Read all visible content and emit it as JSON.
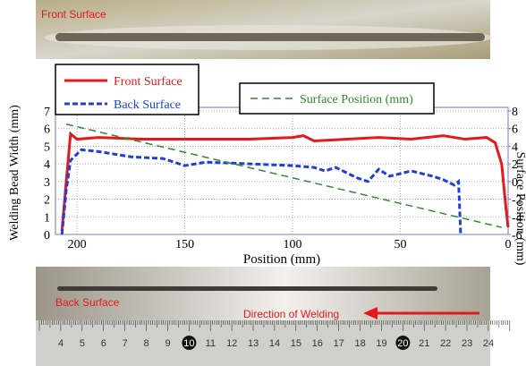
{
  "chart_data": {
    "type": "line",
    "x_label": "Position (mm)",
    "y_label": "Welding Bead Width (mm)",
    "y2_label": "Surface Position (mm)",
    "xlim": [
      210,
      0
    ],
    "xticks": [
      200,
      150,
      100,
      50,
      0
    ],
    "ylim": [
      0,
      7
    ],
    "yticks": [
      0,
      1,
      2,
      3,
      4,
      5,
      6,
      7
    ],
    "y2lim": [
      -6,
      8
    ],
    "y2ticks": [
      -6,
      -4,
      -2,
      0,
      2,
      4,
      6,
      8
    ],
    "grid": true,
    "series": [
      {
        "name": "Front Surface",
        "color": "#e31a1c",
        "style": "solid",
        "x": [
          207,
          205,
          203,
          200,
          190,
          170,
          150,
          120,
          100,
          95,
          90,
          75,
          60,
          45,
          30,
          20,
          10,
          6,
          3,
          1,
          0
        ],
        "values": [
          0.2,
          3,
          5.7,
          5.4,
          5.5,
          5.4,
          5.4,
          5.4,
          5.5,
          5.6,
          5.3,
          5.4,
          5.5,
          5.4,
          5.6,
          5.4,
          5.5,
          5.2,
          4,
          1.5,
          0.4
        ]
      },
      {
        "name": "Back Surface",
        "color": "#1f3fd6",
        "style": "dashed",
        "x": [
          207,
          205,
          203,
          198,
          190,
          175,
          160,
          150,
          140,
          120,
          100,
          90,
          85,
          80,
          70,
          65,
          60,
          55,
          45,
          35,
          30,
          25,
          23,
          22
        ],
        "values": [
          0,
          2.5,
          4.2,
          4.8,
          4.7,
          4.4,
          4.3,
          3.9,
          4.1,
          4.0,
          3.9,
          3.8,
          3.6,
          3.8,
          3.2,
          3.0,
          3.7,
          3.3,
          3.6,
          3.3,
          3.1,
          2.8,
          3.0,
          0
        ]
      },
      {
        "name": "Surface Position (mm)",
        "color": "#2e8b2e",
        "style": "dashed",
        "axis": "y2",
        "x": [
          205,
          3
        ],
        "values": [
          6.5,
          -5.2
        ]
      }
    ]
  },
  "photos": {
    "front_label": "Front Surface",
    "back_label": "Back Surface",
    "direction_label": "Direction of Welding",
    "ruler_labels": [
      "4",
      "5",
      "6",
      "7",
      "8",
      "9",
      "10",
      "11",
      "12",
      "13",
      "14",
      "15",
      "16",
      "17",
      "18",
      "19",
      "20",
      "21",
      "22",
      "23",
      "24"
    ]
  }
}
